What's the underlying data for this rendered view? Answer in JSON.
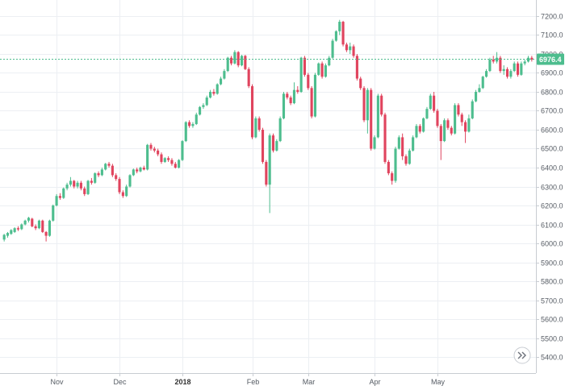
{
  "chart_data": {
    "type": "candlestick",
    "y_axis": {
      "ticks": [
        7200,
        7100,
        7000,
        6900,
        6800,
        6700,
        6600,
        6500,
        6400,
        6300,
        6200,
        6100,
        6000,
        5900,
        5800,
        5700,
        5600,
        5500,
        5400
      ],
      "tick_labels": [
        "7200.0",
        "7100.0",
        "7000.0",
        "6900.0",
        "6800.0",
        "6700.0",
        "6600.0",
        "6500.0",
        "6400.0",
        "6300.0",
        "6200.0",
        "6100.0",
        "6000.0",
        "5900.0",
        "5800.0",
        "5700.0",
        "5600.0",
        "5500.0",
        "5400.0"
      ],
      "range": [
        5315,
        7285
      ],
      "position": "right"
    },
    "x_axis": {
      "labels": [
        {
          "text": "Nov",
          "index": 15,
          "bold": false
        },
        {
          "text": "Dec",
          "index": 33,
          "bold": false
        },
        {
          "text": "2018",
          "index": 51,
          "bold": true
        },
        {
          "text": "Feb",
          "index": 71,
          "bold": false
        },
        {
          "text": "Mar",
          "index": 87,
          "bold": false
        },
        {
          "text": "Apr",
          "index": 106,
          "bold": false
        },
        {
          "text": "May",
          "index": 124,
          "bold": false
        }
      ]
    },
    "last_price": {
      "value": 6976.4,
      "label": "6976.4"
    },
    "grid": true,
    "colors": {
      "up": "#4dbd8e",
      "down": "#e0445e",
      "last_price_line": "#4dbd8e",
      "wick_up": "#4dbd8e",
      "wick_down": "#e0445e"
    },
    "candles": [
      [
        6020,
        6045,
        6010,
        6050
      ],
      [
        6040,
        6055,
        6030,
        6060
      ],
      [
        6050,
        6070,
        6045,
        6075
      ],
      [
        6060,
        6080,
        6055,
        6085
      ],
      [
        6080,
        6075,
        6065,
        6090
      ],
      [
        6075,
        6100,
        6070,
        6105
      ],
      [
        6100,
        6120,
        6095,
        6125
      ],
      [
        6120,
        6135,
        6110,
        6140
      ],
      [
        6130,
        6090,
        6085,
        6135
      ],
      [
        6090,
        6080,
        6070,
        6100
      ],
      [
        6080,
        6120,
        6075,
        6125
      ],
      [
        6120,
        6060,
        6055,
        6125
      ],
      [
        6060,
        6040,
        6010,
        6065
      ],
      [
        6040,
        6120,
        6035,
        6125
      ],
      [
        6120,
        6200,
        6115,
        6205
      ],
      [
        6200,
        6250,
        6195,
        6260
      ],
      [
        6250,
        6240,
        6230,
        6265
      ],
      [
        6240,
        6290,
        6235,
        6295
      ],
      [
        6290,
        6310,
        6280,
        6320
      ],
      [
        6310,
        6330,
        6300,
        6350
      ],
      [
        6330,
        6300,
        6290,
        6335
      ],
      [
        6300,
        6320,
        6290,
        6330
      ],
      [
        6320,
        6290,
        6280,
        6330
      ],
      [
        6290,
        6260,
        6250,
        6300
      ],
      [
        6260,
        6330,
        6255,
        6335
      ],
      [
        6330,
        6320,
        6310,
        6345
      ],
      [
        6320,
        6370,
        6315,
        6375
      ],
      [
        6370,
        6360,
        6350,
        6380
      ],
      [
        6360,
        6390,
        6355,
        6400
      ],
      [
        6390,
        6420,
        6385,
        6425
      ],
      [
        6420,
        6410,
        6400,
        6430
      ],
      [
        6410,
        6360,
        6350,
        6420
      ],
      [
        6360,
        6340,
        6330,
        6370
      ],
      [
        6340,
        6270,
        6260,
        6350
      ],
      [
        6270,
        6250,
        6240,
        6280
      ],
      [
        6250,
        6300,
        6245,
        6310
      ],
      [
        6300,
        6360,
        6295,
        6365
      ],
      [
        6360,
        6390,
        6355,
        6395
      ],
      [
        6390,
        6380,
        6370,
        6400
      ],
      [
        6380,
        6400,
        6375,
        6405
      ],
      [
        6400,
        6390,
        6385,
        6410
      ],
      [
        6390,
        6520,
        6385,
        6525
      ],
      [
        6520,
        6500,
        6490,
        6530
      ],
      [
        6500,
        6490,
        6480,
        6510
      ],
      [
        6490,
        6470,
        6460,
        6500
      ],
      [
        6470,
        6430,
        6420,
        6480
      ],
      [
        6430,
        6450,
        6425,
        6455
      ],
      [
        6450,
        6440,
        6430,
        6460
      ],
      [
        6440,
        6420,
        6410,
        6450
      ],
      [
        6420,
        6400,
        6395,
        6430
      ],
      [
        6400,
        6440,
        6395,
        6445
      ],
      [
        6440,
        6540,
        6435,
        6545
      ],
      [
        6540,
        6640,
        6535,
        6645
      ],
      [
        6640,
        6620,
        6610,
        6650
      ],
      [
        6620,
        6630,
        6610,
        6640
      ],
      [
        6630,
        6680,
        6625,
        6690
      ],
      [
        6680,
        6720,
        6675,
        6725
      ],
      [
        6720,
        6730,
        6710,
        6740
      ],
      [
        6730,
        6770,
        6725,
        6780
      ],
      [
        6770,
        6800,
        6765,
        6810
      ],
      [
        6800,
        6790,
        6780,
        6815
      ],
      [
        6790,
        6840,
        6785,
        6845
      ],
      [
        6840,
        6870,
        6835,
        6880
      ],
      [
        6870,
        6910,
        6865,
        6920
      ],
      [
        6910,
        6980,
        6905,
        6985
      ],
      [
        6980,
        6950,
        6940,
        6990
      ],
      [
        6950,
        7010,
        6945,
        7020
      ],
      [
        7010,
        6940,
        6930,
        7015
      ],
      [
        6940,
        6990,
        6935,
        6995
      ],
      [
        6990,
        6920,
        6915,
        6995
      ],
      [
        6920,
        6830,
        6820,
        6930
      ],
      [
        6830,
        6560,
        6550,
        6840
      ],
      [
        6560,
        6660,
        6555,
        6670
      ],
      [
        6660,
        6600,
        6590,
        6670
      ],
      [
        6600,
        6430,
        6420,
        6610
      ],
      [
        6430,
        6310,
        6300,
        6440
      ],
      [
        6310,
        6570,
        6160,
        6580
      ],
      [
        6570,
        6490,
        6480,
        6580
      ],
      [
        6490,
        6540,
        6485,
        6550
      ],
      [
        6540,
        6660,
        6535,
        6670
      ],
      [
        6660,
        6790,
        6655,
        6800
      ],
      [
        6790,
        6770,
        6760,
        6800
      ],
      [
        6770,
        6740,
        6730,
        6780
      ],
      [
        6740,
        6810,
        6735,
        6850
      ],
      [
        6810,
        6800,
        6790,
        6830
      ],
      [
        6800,
        6980,
        6795,
        6985
      ],
      [
        6980,
        6890,
        6880,
        6990
      ],
      [
        6890,
        6820,
        6810,
        6900
      ],
      [
        6820,
        6670,
        6660,
        6830
      ],
      [
        6670,
        6890,
        6665,
        6900
      ],
      [
        6890,
        6950,
        6885,
        6955
      ],
      [
        6950,
        6880,
        6870,
        6960
      ],
      [
        6880,
        6940,
        6875,
        6950
      ],
      [
        6940,
        6980,
        6935,
        6990
      ],
      [
        6980,
        7070,
        6975,
        7080
      ],
      [
        7070,
        7120,
        7065,
        7125
      ],
      [
        7120,
        7170,
        7100,
        7180
      ],
      [
        7170,
        7050,
        7040,
        7175
      ],
      [
        7050,
        7020,
        7010,
        7060
      ],
      [
        7020,
        7040,
        7000,
        7060
      ],
      [
        7040,
        6990,
        6980,
        7050
      ],
      [
        6990,
        6870,
        6860,
        7000
      ],
      [
        6870,
        6820,
        6810,
        6880
      ],
      [
        6820,
        6650,
        6640,
        6830
      ],
      [
        6650,
        6810,
        6580,
        6820
      ],
      [
        6810,
        6500,
        6490,
        6820
      ],
      [
        6500,
        6560,
        6495,
        6570
      ],
      [
        6560,
        6780,
        6555,
        6790
      ],
      [
        6780,
        6680,
        6670,
        6790
      ],
      [
        6680,
        6430,
        6420,
        6690
      ],
      [
        6430,
        6370,
        6360,
        6440
      ],
      [
        6370,
        6330,
        6310,
        6380
      ],
      [
        6330,
        6500,
        6320,
        6510
      ],
      [
        6500,
        6560,
        6495,
        6570
      ],
      [
        6560,
        6460,
        6440,
        6580
      ],
      [
        6460,
        6420,
        6410,
        6470
      ],
      [
        6420,
        6490,
        6415,
        6500
      ],
      [
        6490,
        6560,
        6485,
        6570
      ],
      [
        6560,
        6620,
        6555,
        6630
      ],
      [
        6620,
        6590,
        6580,
        6630
      ],
      [
        6590,
        6660,
        6585,
        6665
      ],
      [
        6660,
        6710,
        6655,
        6720
      ],
      [
        6710,
        6780,
        6705,
        6790
      ],
      [
        6780,
        6700,
        6690,
        6800
      ],
      [
        6700,
        6620,
        6610,
        6710
      ],
      [
        6620,
        6540,
        6440,
        6630
      ],
      [
        6540,
        6650,
        6535,
        6660
      ],
      [
        6650,
        6610,
        6600,
        6660
      ],
      [
        6610,
        6580,
        6570,
        6620
      ],
      [
        6580,
        6730,
        6575,
        6740
      ],
      [
        6730,
        6680,
        6670,
        6740
      ],
      [
        6680,
        6640,
        6620,
        6690
      ],
      [
        6640,
        6590,
        6530,
        6650
      ],
      [
        6590,
        6660,
        6585,
        6680
      ],
      [
        6660,
        6750,
        6655,
        6760
      ],
      [
        6750,
        6800,
        6745,
        6810
      ],
      [
        6800,
        6820,
        6795,
        6840
      ],
      [
        6820,
        6880,
        6815,
        6885
      ],
      [
        6880,
        6910,
        6875,
        6920
      ],
      [
        6910,
        6970,
        6905,
        6980
      ],
      [
        6970,
        6960,
        6950,
        6990
      ],
      [
        6960,
        6980,
        6950,
        7010
      ],
      [
        6980,
        6910,
        6900,
        6990
      ],
      [
        6910,
        6920,
        6890,
        6940
      ],
      [
        6920,
        6880,
        6870,
        6930
      ],
      [
        6880,
        6910,
        6870,
        6920
      ],
      [
        6910,
        6950,
        6905,
        6960
      ],
      [
        6950,
        6890,
        6880,
        6960
      ],
      [
        6890,
        6950,
        6885,
        6960
      ],
      [
        6950,
        6960,
        6940,
        6970
      ],
      [
        6960,
        6980,
        6955,
        6990
      ],
      [
        6980,
        6970,
        6960,
        6990
      ]
    ]
  },
  "ui": {
    "scroll_right_icon": "double-chevron-right-icon"
  }
}
